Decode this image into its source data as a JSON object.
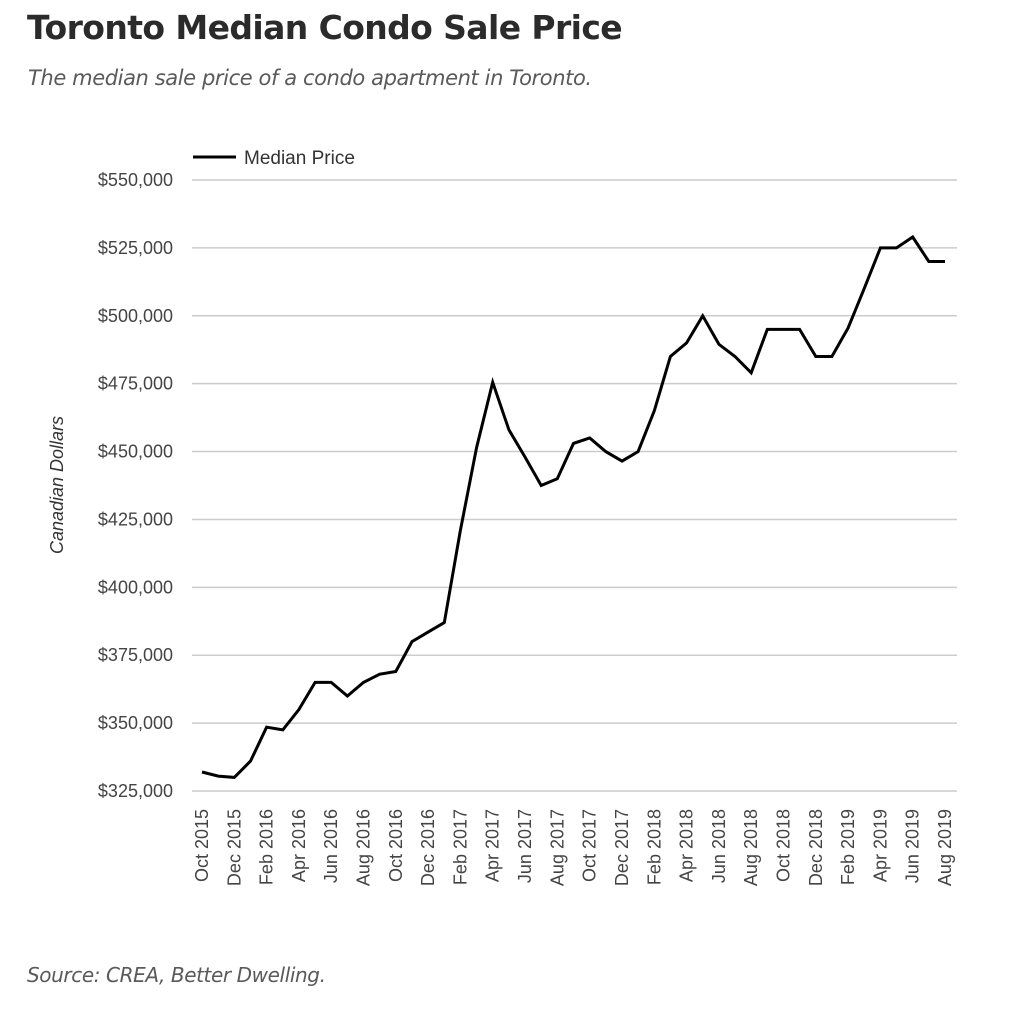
{
  "header": {
    "title": "Toronto Median Condo Sale Price",
    "subtitle": "The median sale price of a condo apartment in Toronto."
  },
  "footer": {
    "source": "Source: CREA, Better Dwelling."
  },
  "colors": {
    "line": "#000000",
    "grid": "#cccccc",
    "text": "#444444"
  },
  "chart_data": {
    "type": "line",
    "title": "Toronto Median Condo Sale Price",
    "subtitle": "The median sale price of a condo apartment in Toronto.",
    "xlabel": "",
    "ylabel": "Canadian Dollars",
    "ylim": [
      325000,
      550000
    ],
    "yticks": [
      325000,
      350000,
      375000,
      400000,
      425000,
      450000,
      475000,
      500000,
      525000,
      550000
    ],
    "ytick_labels": [
      "$325,000",
      "$350,000",
      "$375,000",
      "$400,000",
      "$425,000",
      "$450,000",
      "$475,000",
      "$500,000",
      "$525,000",
      "$550,000"
    ],
    "grid": true,
    "legend": {
      "position": "top-left",
      "entries": [
        "Median Price"
      ]
    },
    "x": [
      "Oct 2015",
      "Nov 2015",
      "Dec 2015",
      "Jan 2016",
      "Feb 2016",
      "Mar 2016",
      "Apr 2016",
      "May 2016",
      "Jun 2016",
      "Jul 2016",
      "Aug 2016",
      "Sep 2016",
      "Oct 2016",
      "Nov 2016",
      "Dec 2016",
      "Jan 2017",
      "Feb 2017",
      "Mar 2017",
      "Apr 2017",
      "May 2017",
      "Jun 2017",
      "Jul 2017",
      "Aug 2017",
      "Sep 2017",
      "Oct 2017",
      "Nov 2017",
      "Dec 2017",
      "Jan 2018",
      "Feb 2018",
      "Mar 2018",
      "Apr 2018",
      "May 2018",
      "Jun 2018",
      "Jul 2018",
      "Aug 2018",
      "Sep 2018",
      "Oct 2018",
      "Nov 2018",
      "Dec 2018",
      "Jan 2019",
      "Feb 2019",
      "Mar 2019",
      "Apr 2019",
      "May 2019",
      "Jun 2019",
      "Jul 2019",
      "Aug 2019"
    ],
    "xtick_labels": [
      "Oct 2015",
      "Dec 2015",
      "Feb 2016",
      "Apr 2016",
      "Jun 2016",
      "Aug 2016",
      "Oct 2016",
      "Dec 2016",
      "Feb 2017",
      "Apr 2017",
      "Jun 2017",
      "Aug 2017",
      "Oct 2017",
      "Dec 2017",
      "Feb 2018",
      "Apr 2018",
      "Jun 2018",
      "Aug 2018",
      "Oct 2018",
      "Dec 2018",
      "Feb 2019",
      "Apr 2019",
      "Jun 2019",
      "Aug 2019"
    ],
    "series": [
      {
        "name": "Median Price",
        "values": [
          332000,
          330500,
          330000,
          336000,
          348500,
          347500,
          355000,
          365000,
          365000,
          360000,
          365000,
          368000,
          369000,
          380000,
          383500,
          387000,
          421000,
          451500,
          475500,
          458000,
          448000,
          437500,
          440000,
          453000,
          455000,
          450000,
          446500,
          450000,
          465000,
          485000,
          490000,
          500000,
          489500,
          485000,
          479000,
          495000,
          495000,
          495000,
          485000,
          485000,
          495500,
          510000,
          525000,
          525000,
          529000,
          520000,
          520000
        ]
      }
    ]
  }
}
